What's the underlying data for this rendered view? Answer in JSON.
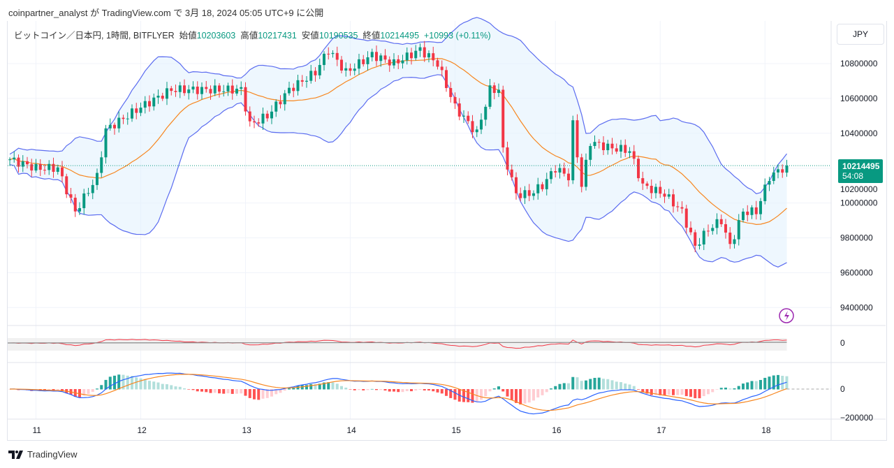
{
  "header": {
    "published": "coinpartner_analyst が TradingView.com で 3月 18, 2024 05:05 UTC+9 に公開"
  },
  "legend": {
    "symbol": "ビットコイン／日本円, 1時間, BITFLYER",
    "open_label": "始値",
    "open": "10203603",
    "high_label": "高値",
    "high": "10217431",
    "low_label": "安値",
    "low": "10190535",
    "close_label": "終値",
    "close": "10214495",
    "change": "+10993 (+0.11%)"
  },
  "currency": "JPY",
  "last_price": {
    "price": "10214495",
    "countdown": "54:08"
  },
  "footer": {
    "brand": "TradingView"
  },
  "colors": {
    "up": "#089981",
    "down": "#f23645",
    "band": "#5b6cf0",
    "basis": "#f7861f",
    "fill": "#e3f2fd"
  },
  "chart_data": {
    "type": "candlestick",
    "timeframe": "1h",
    "price_ticks": [
      "10800000",
      "10600000",
      "10400000",
      "10200000",
      "10000000",
      "9800000",
      "9600000",
      "9400000"
    ],
    "price_tick_values": [
      10800000,
      10600000,
      10400000,
      10200000,
      10000000,
      9800000,
      9600000,
      9400000
    ],
    "ylim": [
      9250000,
      11050000
    ],
    "x_labels": [
      "11",
      "12",
      "13",
      "14",
      "15",
      "16",
      "17",
      "18"
    ],
    "x_label_hours": [
      6,
      30,
      54,
      78,
      102,
      125,
      149,
      173
    ],
    "close_anchors": [
      [
        0,
        10250000
      ],
      [
        6,
        10200000
      ],
      [
        11,
        10200000
      ],
      [
        15,
        9950000
      ],
      [
        20,
        10150000
      ],
      [
        22,
        10420000
      ],
      [
        30,
        10550000
      ],
      [
        37,
        10650000
      ],
      [
        46,
        10650000
      ],
      [
        53,
        10650000
      ],
      [
        55,
        10450000
      ],
      [
        59,
        10500000
      ],
      [
        64,
        10650000
      ],
      [
        70,
        10750000
      ],
      [
        73,
        10880000
      ],
      [
        77,
        10750000
      ],
      [
        83,
        10850000
      ],
      [
        88,
        10800000
      ],
      [
        94,
        10880000
      ],
      [
        98,
        10800000
      ],
      [
        102,
        10550000
      ],
      [
        107,
        10400000
      ],
      [
        110,
        10650000
      ],
      [
        112,
        10650000
      ],
      [
        113,
        10300000
      ],
      [
        116,
        10050000
      ],
      [
        119,
        10050000
      ],
      [
        122,
        10100000
      ],
      [
        125,
        10200000
      ],
      [
        128,
        10150000
      ],
      [
        129,
        10450000
      ],
      [
        131,
        10100000
      ],
      [
        133,
        10350000
      ],
      [
        137,
        10320000
      ],
      [
        142,
        10300000
      ],
      [
        145,
        10100000
      ],
      [
        150,
        10050000
      ],
      [
        154,
        9950000
      ],
      [
        157,
        9750000
      ],
      [
        160,
        9850000
      ],
      [
        163,
        9900000
      ],
      [
        165,
        9750000
      ],
      [
        168,
        9950000
      ],
      [
        171,
        9950000
      ],
      [
        174,
        10150000
      ],
      [
        178,
        10214495
      ]
    ],
    "indicator2_zero_label": "0",
    "macd_ticks": [
      "0",
      "−200000"
    ]
  }
}
